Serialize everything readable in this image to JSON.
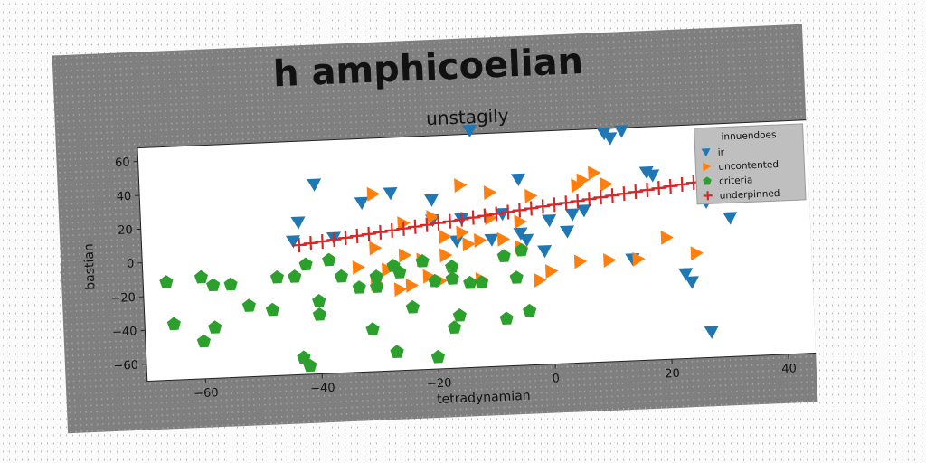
{
  "chart_data": {
    "type": "scatter",
    "suptitle": "h amphicoelian",
    "title": "unstagily",
    "xlabel": "tetradynamian",
    "ylabel": "bastian",
    "xlim": [
      -70,
      45
    ],
    "ylim": [
      -70,
      68
    ],
    "xticks": [
      -60,
      -40,
      -20,
      0,
      20,
      40
    ],
    "yticks": [
      -60,
      -40,
      -20,
      0,
      20,
      40,
      60
    ],
    "legend": {
      "title": "innuendoes",
      "placement": "top-right"
    },
    "series": [
      {
        "name": "ir",
        "marker": "triangle-down",
        "color": "#1f77b4",
        "points": [
          [
            -13,
            70
          ],
          [
            10,
            65
          ],
          [
            11,
            62
          ],
          [
            13,
            66
          ],
          [
            -40,
            42
          ],
          [
            -32,
            30
          ],
          [
            -27,
            35
          ],
          [
            -5,
            40
          ],
          [
            17,
            41
          ],
          [
            18,
            39
          ],
          [
            -43,
            20
          ],
          [
            -44,
            9
          ],
          [
            -37,
            10
          ],
          [
            -20,
            18
          ],
          [
            -15,
            18
          ],
          [
            -16,
            5
          ],
          [
            -10,
            5
          ],
          [
            -5,
            8
          ],
          [
            -4,
            4
          ],
          [
            0,
            15
          ],
          [
            4,
            18
          ],
          [
            3,
            8
          ],
          [
            -1,
            -3
          ],
          [
            14,
            -10
          ],
          [
            23,
            -20
          ],
          [
            24,
            -25
          ],
          [
            27,
            22
          ],
          [
            31,
            12
          ],
          [
            27,
            -55
          ],
          [
            -20,
            30
          ],
          [
            -8,
            20
          ],
          [
            6,
            20
          ]
        ]
      },
      {
        "name": "uncontented",
        "marker": "triangle-right",
        "color": "#ff7f0e",
        "points": [
          [
            -30,
            35
          ],
          [
            -15,
            38
          ],
          [
            -10,
            33
          ],
          [
            -3,
            30
          ],
          [
            5,
            35
          ],
          [
            8,
            42
          ],
          [
            10,
            35
          ],
          [
            6,
            38
          ],
          [
            -25,
            17
          ],
          [
            -20,
            20
          ],
          [
            -10,
            18
          ],
          [
            -5,
            15
          ],
          [
            -15,
            10
          ],
          [
            -12,
            5
          ],
          [
            -18,
            8
          ],
          [
            -30,
            3
          ],
          [
            -25,
            -2
          ],
          [
            -28,
            -10
          ],
          [
            -33,
            -8
          ],
          [
            -30,
            -18
          ],
          [
            -24,
            -20
          ],
          [
            -26,
            -22
          ],
          [
            -21,
            -15
          ],
          [
            -18,
            -3
          ],
          [
            -14,
            3
          ],
          [
            -8,
            5
          ],
          [
            -5,
            0
          ],
          [
            0,
            -15
          ],
          [
            5,
            -10
          ],
          [
            10,
            -10
          ],
          [
            15,
            -10
          ],
          [
            20,
            2
          ],
          [
            25,
            -8
          ],
          [
            -2,
            -20
          ],
          [
            -19,
            -18
          ],
          [
            -12,
            -18
          ],
          [
            -22,
            -5
          ]
        ]
      },
      {
        "name": "criteria",
        "marker": "pentagon",
        "color": "#2ca02c",
        "points": [
          [
            -66,
            -12
          ],
          [
            -60,
            -10
          ],
          [
            -58,
            -15
          ],
          [
            -55,
            -15
          ],
          [
            -65,
            -37
          ],
          [
            -60,
            -48
          ],
          [
            -58,
            -40
          ],
          [
            -52,
            -28
          ],
          [
            -48,
            -31
          ],
          [
            -47,
            -12
          ],
          [
            -44,
            -12
          ],
          [
            -42,
            -5
          ],
          [
            -38,
            -3
          ],
          [
            -40,
            -27
          ],
          [
            -40,
            -35
          ],
          [
            -36,
            -13
          ],
          [
            -33,
            -20
          ],
          [
            -30,
            -20
          ],
          [
            -26,
            -12
          ],
          [
            -22,
            -6
          ],
          [
            -20,
            -18
          ],
          [
            -17,
            -17
          ],
          [
            -17,
            -10
          ],
          [
            -14,
            -20
          ],
          [
            -12,
            -20
          ],
          [
            -8,
            -5
          ],
          [
            -5,
            -2
          ],
          [
            -6,
            -18
          ],
          [
            -4,
            -38
          ],
          [
            -8,
            -42
          ],
          [
            -16,
            -39
          ],
          [
            -17,
            -46
          ],
          [
            -31,
            -45
          ],
          [
            -27,
            -59
          ],
          [
            -43,
            -60
          ],
          [
            -42,
            -65
          ],
          [
            -20,
            -63
          ],
          [
            -24,
            -33
          ],
          [
            -27,
            -8
          ],
          [
            -30,
            -14
          ]
        ]
      },
      {
        "name": "underpinned",
        "marker": "plus",
        "color": "#d62728",
        "points": [
          [
            -43,
            6.6
          ],
          [
            -41,
            7.4
          ],
          [
            -39,
            8.2
          ],
          [
            -37,
            9.0
          ],
          [
            -35,
            9.8
          ],
          [
            -33,
            10.6
          ],
          [
            -31,
            11.4
          ],
          [
            -29,
            12.2
          ],
          [
            -27,
            13.0
          ],
          [
            -25,
            13.8
          ],
          [
            -23,
            14.6
          ],
          [
            -21,
            15.4
          ],
          [
            -19,
            16.2
          ],
          [
            -17,
            17.0
          ],
          [
            -15,
            17.8
          ],
          [
            -13,
            18.6
          ],
          [
            -11,
            19.4
          ],
          [
            -9,
            20.2
          ],
          [
            -7,
            21.0
          ],
          [
            -5,
            21.8
          ],
          [
            -3,
            22.6
          ],
          [
            -1,
            23.4
          ],
          [
            1,
            24.2
          ],
          [
            3,
            25.0
          ],
          [
            5,
            25.8
          ],
          [
            7,
            26.6
          ],
          [
            9,
            27.4
          ],
          [
            11,
            28.2
          ],
          [
            13,
            29.0
          ],
          [
            15,
            29.8
          ],
          [
            17,
            30.6
          ],
          [
            19,
            31.4
          ],
          [
            21,
            32.2
          ],
          [
            23,
            33.0
          ],
          [
            25,
            33.8
          ],
          [
            27,
            34.6
          ],
          [
            29,
            35.4
          ],
          [
            31,
            36.2
          ],
          [
            33,
            37.0
          ],
          [
            35,
            37.8
          ],
          [
            37,
            38.6
          ]
        ]
      }
    ]
  }
}
